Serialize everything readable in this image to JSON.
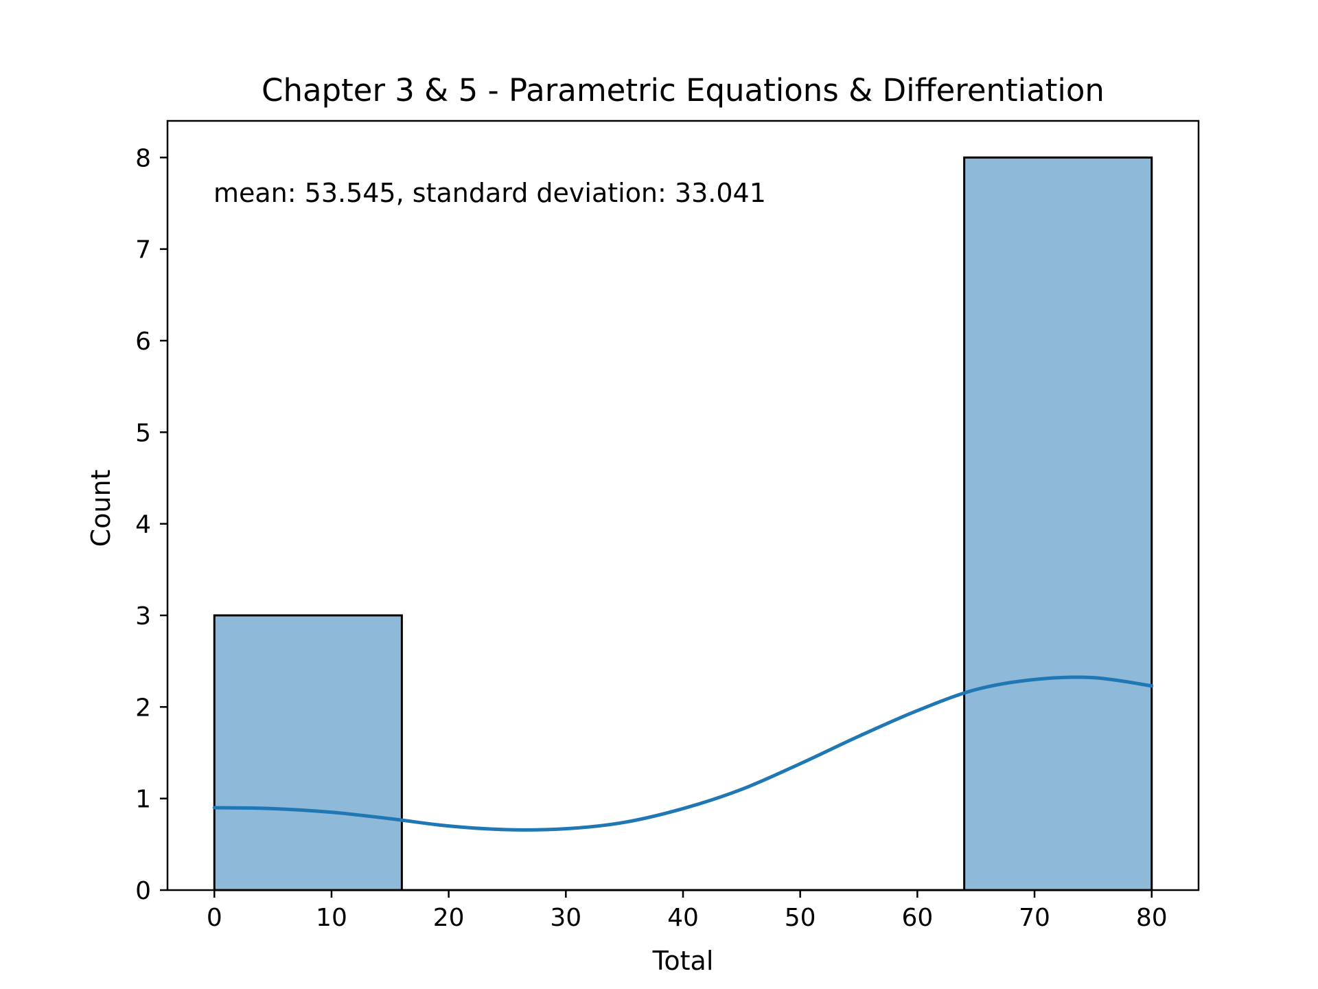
{
  "chart_data": {
    "type": "bar",
    "subtype": "histogram",
    "title": "Chapter 3 & 5 - Parametric Equations & Differentiation",
    "xlabel": "Total",
    "ylabel": "Count",
    "annotation": "mean: 53.545, standard deviation: 33.041",
    "xlim": [
      -4,
      84
    ],
    "ylim": [
      0,
      8.4
    ],
    "xticks": [
      0,
      10,
      20,
      30,
      40,
      50,
      60,
      70,
      80
    ],
    "yticks": [
      0,
      1,
      2,
      3,
      4,
      5,
      6,
      7,
      8
    ],
    "bins": [
      {
        "x0": 0,
        "x1": 16,
        "count": 3
      },
      {
        "x0": 16,
        "x1": 32,
        "count": 0
      },
      {
        "x0": 32,
        "x1": 48,
        "count": 0
      },
      {
        "x0": 48,
        "x1": 64,
        "count": 0
      },
      {
        "x0": 64,
        "x1": 80,
        "count": 8
      }
    ],
    "kde": {
      "x": [
        0,
        5,
        10,
        15,
        20,
        25,
        30,
        35,
        40,
        45,
        50,
        55,
        60,
        65,
        70,
        75,
        80
      ],
      "y": [
        0.9,
        0.89,
        0.85,
        0.78,
        0.7,
        0.66,
        0.67,
        0.74,
        0.89,
        1.1,
        1.38,
        1.68,
        1.96,
        2.19,
        2.3,
        2.32,
        2.23
      ]
    },
    "grid": false,
    "colors": {
      "bar_fill": "#8fb9d9",
      "bar_edge": "#000000",
      "kde_line": "#1f77b4"
    }
  }
}
